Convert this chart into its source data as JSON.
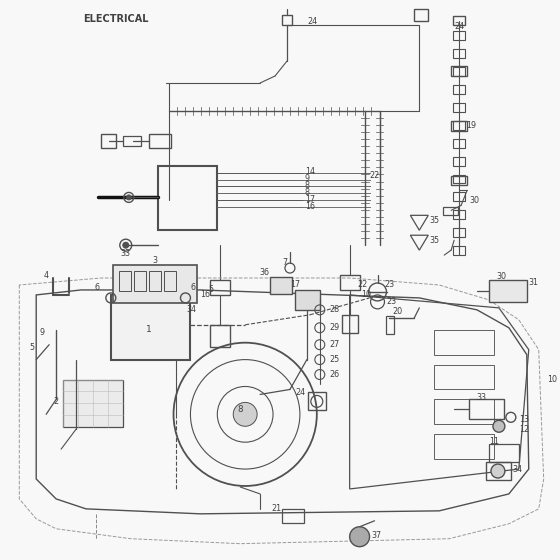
{
  "title": "ELECTRICAL",
  "bg_color": "#f8f8f8",
  "line_color": "#505050",
  "text_color": "#404040",
  "label_fontsize": 5.8,
  "title_fontsize": 7.5,
  "fig_width": 5.6,
  "fig_height": 5.6,
  "dpi": 100
}
